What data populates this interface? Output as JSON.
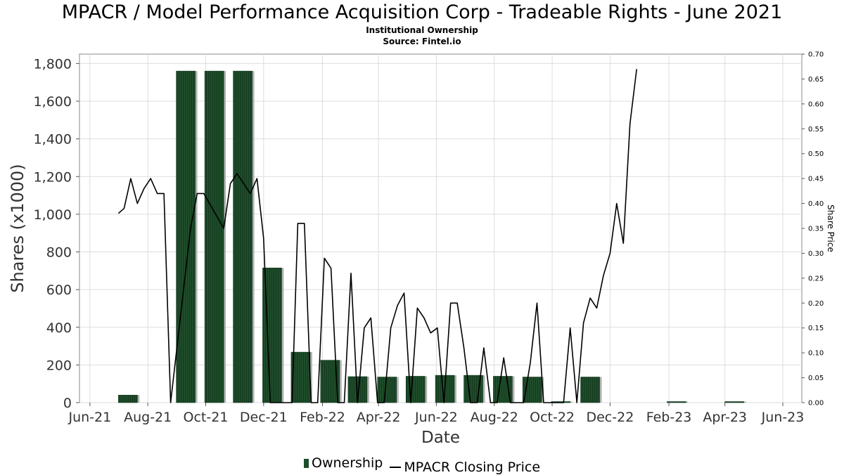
{
  "title": "MPACR / Model Performance Acquisition Corp - Tradeable Rights - June 2021",
  "subtitle_lines": [
    "Institutional Ownership",
    "Source: Fintel.io"
  ],
  "legend": {
    "ownership": "Ownership",
    "price": "MPACR Closing Price"
  },
  "colors": {
    "bar": "#1f4d2b",
    "bar_shadow": "#9a9a9a",
    "line": "#000000",
    "grid": "#dddddd",
    "frame": "#888888"
  },
  "chart_data": {
    "type": "bar",
    "xlabel": "Date",
    "ylabel": "Shares (x1000)",
    "y2label": "Share Price",
    "x_ticks": [
      "Jun-21",
      "Aug-21",
      "Oct-21",
      "Dec-21",
      "Feb-22",
      "Apr-22",
      "Jun-22",
      "Aug-22",
      "Oct-22",
      "Dec-22",
      "Feb-23",
      "Apr-23",
      "Jun-23"
    ],
    "x_tick_dates": [
      "2021-06-01",
      "2021-08-01",
      "2021-10-01",
      "2021-12-01",
      "2022-02-01",
      "2022-04-01",
      "2022-06-01",
      "2022-08-01",
      "2022-10-01",
      "2022-12-01",
      "2023-02-01",
      "2023-04-01",
      "2023-06-01"
    ],
    "xlim": [
      "2021-05-21",
      "2023-06-21"
    ],
    "ylim": [
      0,
      1850
    ],
    "y_ticks": [
      0,
      200,
      400,
      600,
      800,
      1000,
      1200,
      1400,
      1600,
      1800
    ],
    "y_tick_labels": [
      "0",
      "200",
      "400",
      "600",
      "800",
      "1,000",
      "1,200",
      "1,400",
      "1,600",
      "1,800"
    ],
    "y2lim": [
      0,
      0.7
    ],
    "y2_ticks": [
      0,
      0.05,
      0.1,
      0.15,
      0.2,
      0.25,
      0.3,
      0.35,
      0.4,
      0.45,
      0.5,
      0.55,
      0.6,
      0.65,
      0.7
    ],
    "y2_tick_labels": [
      "0.00",
      "0.05",
      "0.10",
      "0.15",
      "0.20",
      "0.25",
      "0.30",
      "0.35",
      "0.40",
      "0.45",
      "0.50",
      "0.55",
      "0.60",
      "0.65",
      "0.70"
    ],
    "grid": true,
    "legend_position": "bottom",
    "series": [
      {
        "name": "Ownership",
        "type": "bar",
        "axis": "left",
        "points": [
          {
            "start": "2021-07-01",
            "end": "2021-07-21",
            "value": 40
          },
          {
            "start": "2021-08-31",
            "end": "2021-09-20",
            "value": 1760
          },
          {
            "start": "2021-09-30",
            "end": "2021-10-20",
            "value": 1760
          },
          {
            "start": "2021-10-30",
            "end": "2021-11-19",
            "value": 1760
          },
          {
            "start": "2021-11-30",
            "end": "2021-12-20",
            "value": 715
          },
          {
            "start": "2021-12-30",
            "end": "2022-01-19",
            "value": 268
          },
          {
            "start": "2022-01-30",
            "end": "2022-02-19",
            "value": 225
          },
          {
            "start": "2022-02-28",
            "end": "2022-03-20",
            "value": 138
          },
          {
            "start": "2022-03-31",
            "end": "2022-04-20",
            "value": 136
          },
          {
            "start": "2022-04-30",
            "end": "2022-05-20",
            "value": 140
          },
          {
            "start": "2022-05-31",
            "end": "2022-06-20",
            "value": 145
          },
          {
            "start": "2022-06-30",
            "end": "2022-07-20",
            "value": 145
          },
          {
            "start": "2022-07-31",
            "end": "2022-08-20",
            "value": 140
          },
          {
            "start": "2022-08-31",
            "end": "2022-09-20",
            "value": 136
          },
          {
            "start": "2022-09-30",
            "end": "2022-10-20",
            "value": 0
          },
          {
            "start": "2022-10-31",
            "end": "2022-11-20",
            "value": 136
          },
          {
            "start": "2023-01-30",
            "end": "2023-02-19",
            "value": 0
          },
          {
            "start": "2023-04-01",
            "end": "2023-04-21",
            "value": 0
          }
        ]
      },
      {
        "name": "MPACR Closing Price",
        "type": "line",
        "axis": "right",
        "points": [
          [
            "2021-07-01",
            0.38
          ],
          [
            "2021-07-07",
            0.39
          ],
          [
            "2021-07-14",
            0.45
          ],
          [
            "2021-07-21",
            0.4
          ],
          [
            "2021-07-28",
            0.43
          ],
          [
            "2021-08-04",
            0.45
          ],
          [
            "2021-08-11",
            0.42
          ],
          [
            "2021-08-18",
            0.42
          ],
          [
            "2021-08-25",
            0.0
          ],
          [
            "2021-09-15",
            0.35
          ],
          [
            "2021-09-22",
            0.42
          ],
          [
            "2021-09-29",
            0.42
          ],
          [
            "2021-10-20",
            0.35
          ],
          [
            "2021-10-27",
            0.44
          ],
          [
            "2021-11-03",
            0.46
          ],
          [
            "2021-11-17",
            0.42
          ],
          [
            "2021-11-24",
            0.45
          ],
          [
            "2021-12-01",
            0.33
          ],
          [
            "2021-12-08",
            0.0
          ],
          [
            "2021-12-31",
            0.0
          ],
          [
            "2022-01-06",
            0.36
          ],
          [
            "2022-01-13",
            0.36
          ],
          [
            "2022-01-20",
            0.0
          ],
          [
            "2022-01-27",
            0.0
          ],
          [
            "2022-02-03",
            0.29
          ],
          [
            "2022-02-10",
            0.27
          ],
          [
            "2022-02-17",
            0.0
          ],
          [
            "2022-02-24",
            0.0
          ],
          [
            "2022-03-03",
            0.26
          ],
          [
            "2022-03-10",
            0.0
          ],
          [
            "2022-03-17",
            0.15
          ],
          [
            "2022-03-24",
            0.17
          ],
          [
            "2022-03-31",
            0.0
          ],
          [
            "2022-04-07",
            0.0
          ],
          [
            "2022-04-14",
            0.15
          ],
          [
            "2022-04-21",
            0.195
          ],
          [
            "2022-04-28",
            0.22
          ],
          [
            "2022-05-05",
            0.0
          ],
          [
            "2022-05-12",
            0.19
          ],
          [
            "2022-05-19",
            0.17
          ],
          [
            "2022-05-26",
            0.14
          ],
          [
            "2022-06-02",
            0.15
          ],
          [
            "2022-06-09",
            0.0
          ],
          [
            "2022-06-16",
            0.2
          ],
          [
            "2022-06-23",
            0.2
          ],
          [
            "2022-06-30",
            0.11
          ],
          [
            "2022-07-07",
            0.0
          ],
          [
            "2022-07-14",
            0.0
          ],
          [
            "2022-07-21",
            0.11
          ],
          [
            "2022-07-28",
            0.0
          ],
          [
            "2022-08-04",
            0.0
          ],
          [
            "2022-08-11",
            0.09
          ],
          [
            "2022-08-18",
            0.0
          ],
          [
            "2022-08-25",
            0.0
          ],
          [
            "2022-09-01",
            0.0
          ],
          [
            "2022-09-08",
            0.08
          ],
          [
            "2022-09-15",
            0.2
          ],
          [
            "2022-09-22",
            0.0
          ],
          [
            "2022-10-13",
            0.0
          ],
          [
            "2022-10-20",
            0.15
          ],
          [
            "2022-10-27",
            0.0
          ],
          [
            "2022-11-03",
            0.16
          ],
          [
            "2022-11-10",
            0.21
          ],
          [
            "2022-11-17",
            0.19
          ],
          [
            "2022-11-24",
            0.255
          ],
          [
            "2022-12-01",
            0.3
          ],
          [
            "2022-12-08",
            0.4
          ],
          [
            "2022-12-15",
            0.32
          ],
          [
            "2022-12-22",
            0.56
          ],
          [
            "2022-12-29",
            0.67
          ]
        ]
      }
    ]
  }
}
